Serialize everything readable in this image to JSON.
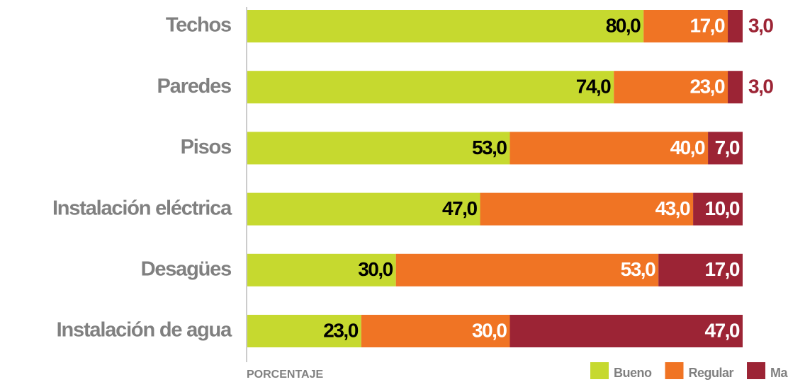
{
  "chart_data": {
    "type": "stacked-barh",
    "categories": [
      "Techos",
      "Paredes",
      "Pisos",
      "Instalación eléctrica",
      "Desagües",
      "Instalación de agua"
    ],
    "series": [
      {
        "name": "Bueno",
        "color": "#c6d92f",
        "values": [
          80,
          74,
          53,
          47,
          30,
          23
        ],
        "value_labels": [
          "80,0",
          "74,0",
          "53,0",
          "47,0",
          "30,0",
          "23,0"
        ]
      },
      {
        "name": "Regular",
        "color": "#f07424",
        "values": [
          17,
          23,
          40,
          43,
          53,
          30
        ],
        "value_labels": [
          "17,0",
          "23,0",
          "40,0",
          "43,0",
          "53,0",
          "30,0"
        ]
      },
      {
        "name": "Malo",
        "color": "#9c2435",
        "values": [
          3,
          3,
          7,
          10,
          17,
          47
        ],
        "value_labels": [
          "3,0",
          "3,0",
          "7,0",
          "10,0",
          "17,0",
          "47,0"
        ]
      }
    ],
    "xlabel": "PORCENTAJE",
    "xlim": [
      0,
      100
    ]
  }
}
